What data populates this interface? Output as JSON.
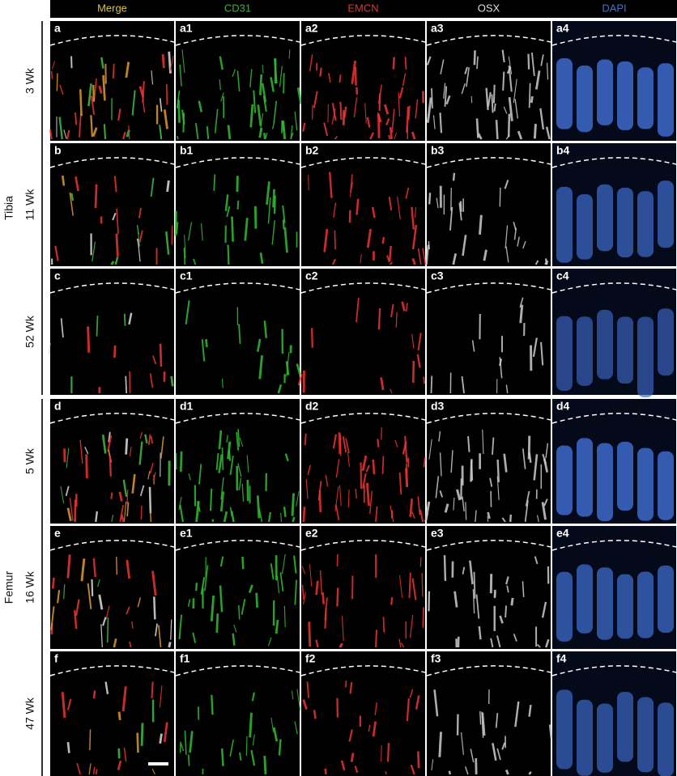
{
  "header": {
    "columns": [
      "Merge",
      "CD31",
      "EMCN",
      "OSX",
      "DAPI"
    ]
  },
  "groups": [
    {
      "label": "Tibia",
      "rows": [
        {
          "label": "3 Wk",
          "panels": [
            "a",
            "a1",
            "a2",
            "a3",
            "a4"
          ]
        },
        {
          "label": "11 Wk",
          "panels": [
            "b",
            "b1",
            "b2",
            "b3",
            "b4"
          ]
        },
        {
          "label": "52 Wk",
          "panels": [
            "c",
            "c1",
            "c2",
            "c3",
            "c4"
          ]
        }
      ]
    },
    {
      "label": "Femur",
      "rows": [
        {
          "label": "5 Wk",
          "panels": [
            "d",
            "d1",
            "d2",
            "d3",
            "d4"
          ]
        },
        {
          "label": "16 Wk",
          "panels": [
            "e",
            "e1",
            "e2",
            "e3",
            "e4"
          ]
        },
        {
          "label": "47 Wk",
          "panels": [
            "f",
            "f1",
            "f2",
            "f3",
            "f4"
          ]
        }
      ]
    }
  ]
}
